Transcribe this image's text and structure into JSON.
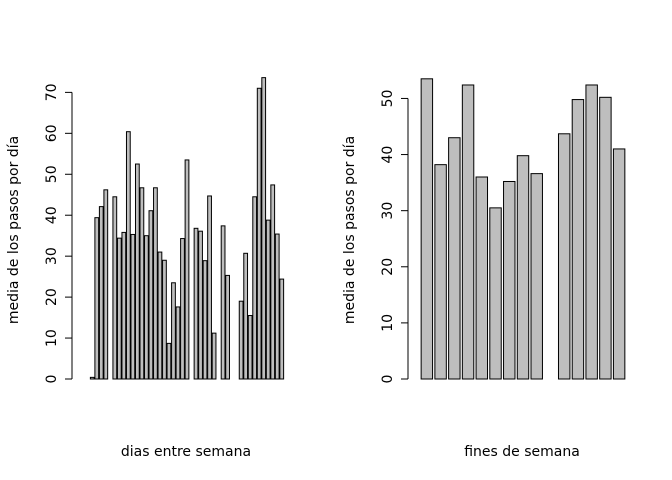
{
  "chart_data": [
    {
      "type": "bar",
      "title": "",
      "xlabel": "dias entre semana",
      "ylabel": "media de los pasos por día",
      "ylim": [
        0,
        74
      ],
      "yticks": [
        0,
        10,
        20,
        30,
        40,
        50,
        60,
        70
      ],
      "grid": false,
      "bar_color": "#bebebe",
      "values": [
        0.4,
        39.4,
        42.1,
        46.2,
        0,
        44.5,
        34.4,
        35.8,
        60.4,
        35.3,
        52.5,
        46.7,
        35.0,
        41.1,
        46.7,
        31.0,
        29.0,
        8.7,
        23.5,
        17.6,
        34.3,
        53.5,
        0,
        36.8,
        36.1,
        28.9,
        44.7,
        11.2,
        0,
        37.4,
        25.3,
        0,
        0,
        19.0,
        30.7,
        15.5,
        44.5,
        71.0,
        73.6,
        38.8,
        47.4,
        35.4,
        24.4
      ]
    },
    {
      "type": "bar",
      "title": "",
      "xlabel": "fines de semana",
      "ylabel": "media de los pasos por día",
      "ylim": [
        0,
        54
      ],
      "yticks": [
        0,
        10,
        20,
        30,
        40,
        50
      ],
      "grid": false,
      "bar_color": "#bebebe",
      "values": [
        53.5,
        38.2,
        43.0,
        52.4,
        36.0,
        30.5,
        35.2,
        39.8,
        36.6,
        0,
        43.7,
        49.8,
        52.4,
        50.2,
        41.0
      ]
    }
  ]
}
